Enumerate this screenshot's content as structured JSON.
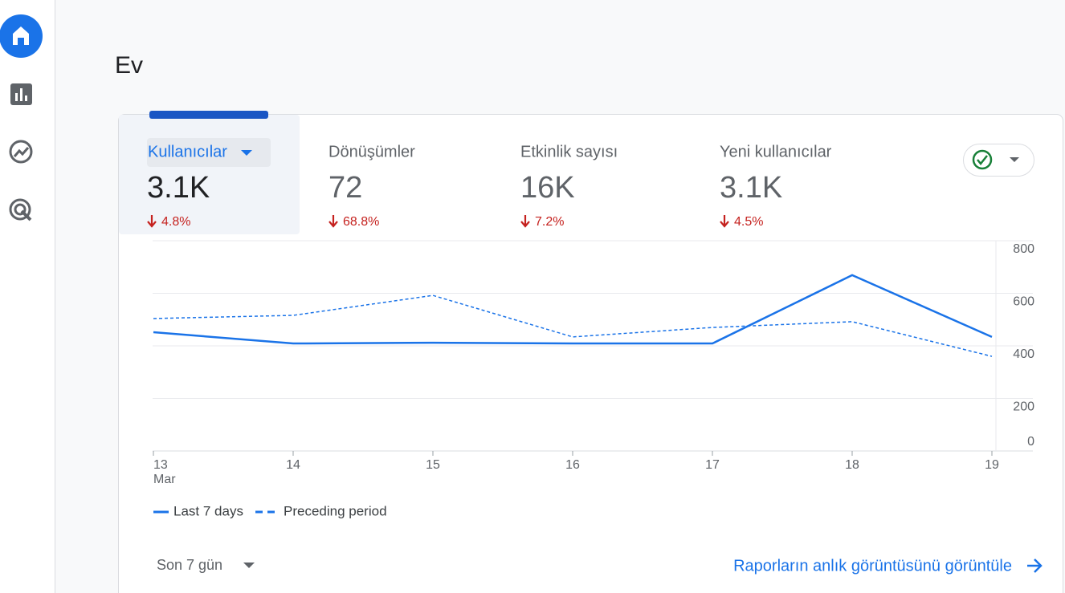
{
  "page_title": "Ev",
  "metrics": [
    {
      "name": "Kullanıcılar",
      "value": "3.1K",
      "change": "4.8%"
    },
    {
      "name": "Dönüşümler",
      "value": "72",
      "change": "68.8%"
    },
    {
      "name": "Etkinlik sayısı",
      "value": "16K",
      "change": "7.2%"
    },
    {
      "name": "Yeni kullanıcılar",
      "value": "3.1K",
      "change": "4.5%"
    }
  ],
  "chart_data": {
    "type": "line",
    "categories": [
      "13",
      "14",
      "15",
      "16",
      "17",
      "18",
      "19"
    ],
    "x_month_label": "Mar",
    "series": [
      {
        "name": "Last 7 days",
        "color": "#1a73e8",
        "dashed": false,
        "values": [
          452,
          409,
          412,
          409,
          409,
          669,
          434
        ]
      },
      {
        "name": "Preceding period",
        "color": "#1a73e8",
        "dashed": true,
        "values": [
          504,
          516,
          592,
          434,
          470,
          492,
          360
        ]
      }
    ],
    "ylim": [
      0,
      800
    ],
    "yticks": [
      0,
      200,
      400,
      600,
      800
    ],
    "grid": true
  },
  "footer": {
    "date_range": "Son 7 gün",
    "link": "Raporların anlık görüntüsünü görüntüle"
  }
}
